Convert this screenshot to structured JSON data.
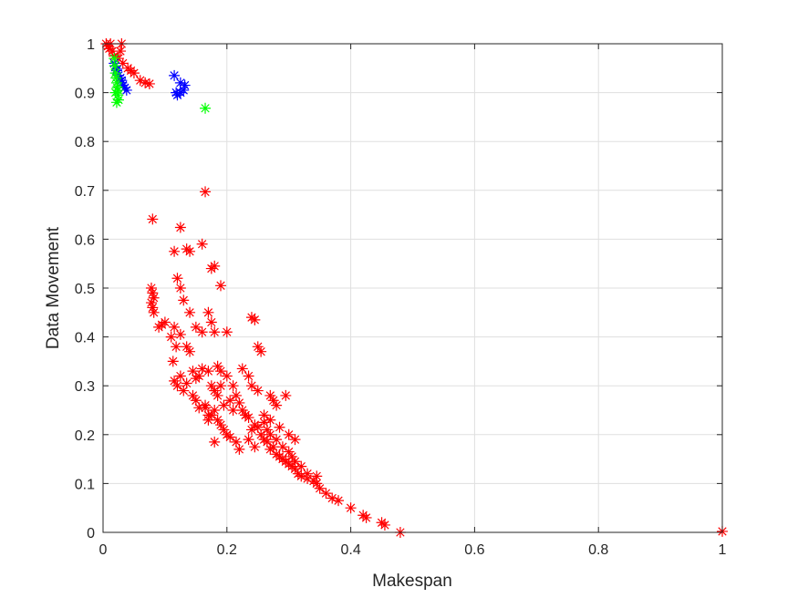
{
  "chart_data": {
    "type": "scatter",
    "title": "",
    "xlabel": "Makespan",
    "ylabel": "Data Movement",
    "xlim": [
      0,
      1
    ],
    "ylim": [
      0,
      1
    ],
    "xticks": [
      0,
      0.2,
      0.4,
      0.6,
      0.8,
      1
    ],
    "xtick_labels": [
      "0",
      "0.2",
      "0.4",
      "0.6",
      "0.8",
      "1"
    ],
    "yticks": [
      0,
      0.1,
      0.2,
      0.3,
      0.4,
      0.5,
      0.6,
      0.7,
      0.8,
      0.9,
      1
    ],
    "ytick_labels": [
      "0",
      "0.1",
      "0.2",
      "0.3",
      "0.4",
      "0.5",
      "0.6",
      "0.7",
      "0.8",
      "0.9",
      "1"
    ],
    "grid": true,
    "marker": "asterisk",
    "series": [
      {
        "color": "#ff0000",
        "x": [
          0.005,
          0.008,
          0.01,
          0.012,
          0.015,
          0.018,
          0.025,
          0.028,
          0.03,
          0.032,
          0.04,
          0.045,
          0.05,
          0.06,
          0.068,
          0.075,
          0.165,
          0.08,
          0.125,
          0.16,
          0.115,
          0.135,
          0.14,
          0.175,
          0.18,
          0.078,
          0.08,
          0.082,
          0.078,
          0.08,
          0.082,
          0.1,
          0.095,
          0.09,
          0.11,
          0.118,
          0.113,
          0.12,
          0.125,
          0.13,
          0.14,
          0.15,
          0.16,
          0.17,
          0.175,
          0.18,
          0.19,
          0.2,
          0.115,
          0.125,
          0.135,
          0.14,
          0.145,
          0.15,
          0.155,
          0.16,
          0.17,
          0.175,
          0.18,
          0.185,
          0.19,
          0.2,
          0.21,
          0.215,
          0.22,
          0.225,
          0.23,
          0.235,
          0.24,
          0.245,
          0.25,
          0.255,
          0.26,
          0.265,
          0.27,
          0.275,
          0.28,
          0.285,
          0.29,
          0.295,
          0.3,
          0.305,
          0.31,
          0.315,
          0.32,
          0.33,
          0.34,
          0.345,
          0.35,
          0.36,
          0.37,
          0.38,
          0.4,
          0.42,
          0.425,
          0.45,
          0.455,
          0.48,
          1.0,
          0.24,
          0.245,
          0.25,
          0.255,
          0.225,
          0.235,
          0.24,
          0.27,
          0.275,
          0.28,
          0.295,
          0.23,
          0.21,
          0.205,
          0.195,
          0.185,
          0.175,
          0.165,
          0.155,
          0.25,
          0.26,
          0.265,
          0.27,
          0.28,
          0.29,
          0.3,
          0.305,
          0.31,
          0.32,
          0.33,
          0.345,
          0.26,
          0.27,
          0.285,
          0.3,
          0.31,
          0.235,
          0.245,
          0.215,
          0.22,
          0.19,
          0.195,
          0.2,
          0.205,
          0.18,
          0.17,
          0.145,
          0.13,
          0.12,
          0.115,
          0.125,
          0.135,
          0.15,
          0.165,
          0.17,
          0.18,
          0.185,
          0.19
        ],
        "y": [
          1.0,
          0.995,
          0.99,
          1.0,
          0.985,
          0.975,
          0.97,
          0.985,
          1.0,
          0.96,
          0.95,
          0.945,
          0.94,
          0.925,
          0.92,
          0.918,
          0.697,
          0.641,
          0.624,
          0.59,
          0.575,
          0.58,
          0.575,
          0.54,
          0.545,
          0.5,
          0.49,
          0.48,
          0.47,
          0.46,
          0.45,
          0.43,
          0.425,
          0.42,
          0.4,
          0.38,
          0.35,
          0.52,
          0.5,
          0.475,
          0.45,
          0.42,
          0.41,
          0.45,
          0.43,
          0.41,
          0.505,
          0.41,
          0.42,
          0.405,
          0.38,
          0.37,
          0.33,
          0.315,
          0.32,
          0.335,
          0.33,
          0.3,
          0.29,
          0.34,
          0.33,
          0.32,
          0.3,
          0.28,
          0.265,
          0.25,
          0.24,
          0.235,
          0.21,
          0.22,
          0.215,
          0.2,
          0.19,
          0.185,
          0.17,
          0.175,
          0.16,
          0.155,
          0.15,
          0.145,
          0.14,
          0.135,
          0.13,
          0.12,
          0.115,
          0.11,
          0.105,
          0.1,
          0.09,
          0.08,
          0.07,
          0.065,
          0.05,
          0.035,
          0.03,
          0.02,
          0.015,
          0.0,
          0.002,
          0.44,
          0.435,
          0.38,
          0.37,
          0.335,
          0.32,
          0.3,
          0.28,
          0.27,
          0.26,
          0.28,
          0.24,
          0.25,
          0.27,
          0.26,
          0.23,
          0.24,
          0.26,
          0.255,
          0.29,
          0.225,
          0.21,
          0.2,
          0.19,
          0.175,
          0.165,
          0.155,
          0.145,
          0.135,
          0.12,
          0.115,
          0.24,
          0.23,
          0.215,
          0.2,
          0.19,
          0.19,
          0.175,
          0.185,
          0.17,
          0.22,
          0.21,
          0.2,
          0.195,
          0.185,
          0.23,
          0.28,
          0.29,
          0.3,
          0.31,
          0.32,
          0.305,
          0.27,
          0.255,
          0.24,
          0.25,
          0.28,
          0.3
        ]
      },
      {
        "color": "#0000ff",
        "x": [
          0.018,
          0.02,
          0.022,
          0.025,
          0.028,
          0.03,
          0.032,
          0.035,
          0.038,
          0.022,
          0.03,
          0.115,
          0.12,
          0.125,
          0.13,
          0.132,
          0.125,
          0.118
        ],
        "y": [
          0.96,
          0.955,
          0.945,
          0.935,
          0.93,
          0.92,
          0.915,
          0.91,
          0.905,
          0.948,
          0.925,
          0.935,
          0.895,
          0.9,
          0.905,
          0.915,
          0.92,
          0.9
        ]
      },
      {
        "color": "#00ff00",
        "x": [
          0.018,
          0.019,
          0.02,
          0.021,
          0.022,
          0.023,
          0.024,
          0.025,
          0.02,
          0.022,
          0.024,
          0.165
        ],
        "y": [
          0.97,
          0.955,
          0.94,
          0.93,
          0.92,
          0.91,
          0.895,
          0.885,
          0.9,
          0.88,
          0.905,
          0.868
        ]
      }
    ]
  }
}
